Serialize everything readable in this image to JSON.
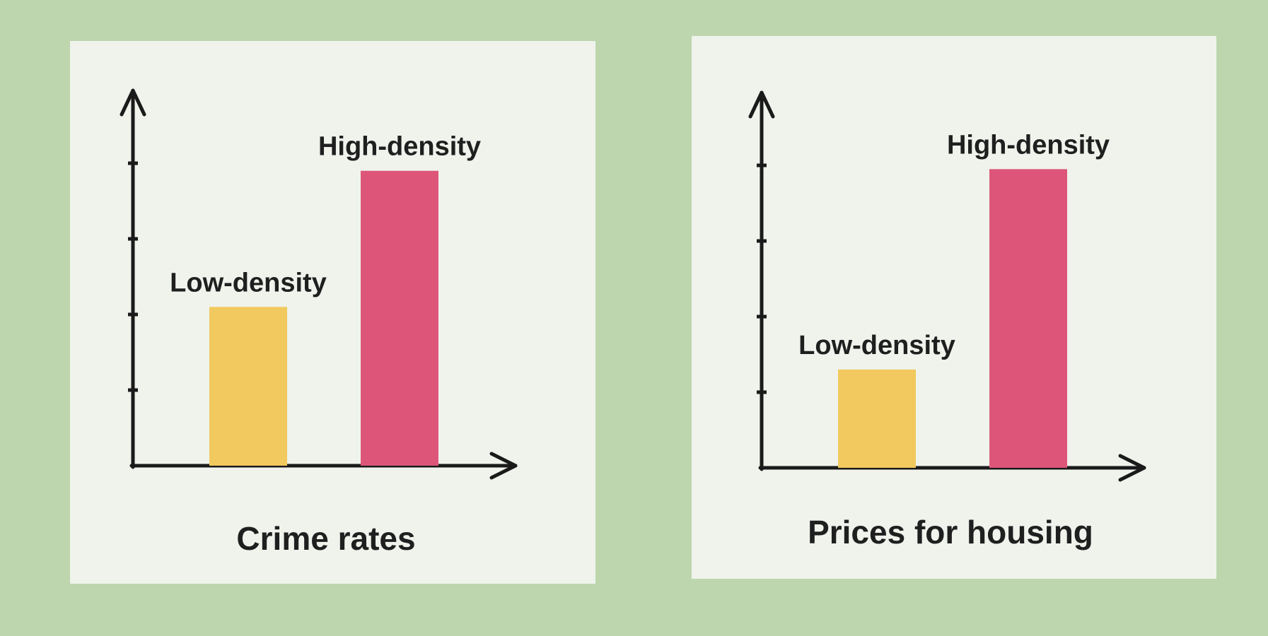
{
  "colors": {
    "background": "#bdd6ae",
    "panel": "#eff3ec",
    "axis": "#1a1a1a",
    "low_density_bar": "#f2c95e",
    "high_density_bar": "#dd5679"
  },
  "chart_data": [
    {
      "type": "bar",
      "title": "Crime rates",
      "categories": [
        "Low-density",
        "High-density"
      ],
      "values": [
        2.1,
        3.9
      ],
      "bar_colors": [
        "#f2c95e",
        "#dd5679"
      ],
      "ylim": [
        0,
        5
      ],
      "y_ticks": [
        1,
        2,
        3,
        4
      ],
      "xlabel": "",
      "ylabel": "",
      "grid": false,
      "legend": "none",
      "data_labels_are_category_names": true
    },
    {
      "type": "bar",
      "title": "Prices for housing",
      "categories": [
        "Low-density",
        "High-density"
      ],
      "values": [
        1.3,
        3.95
      ],
      "bar_colors": [
        "#f2c95e",
        "#dd5679"
      ],
      "ylim": [
        0,
        5
      ],
      "y_ticks": [
        1,
        2,
        3,
        4
      ],
      "xlabel": "",
      "ylabel": "",
      "grid": false,
      "legend": "none",
      "data_labels_are_category_names": true
    }
  ]
}
